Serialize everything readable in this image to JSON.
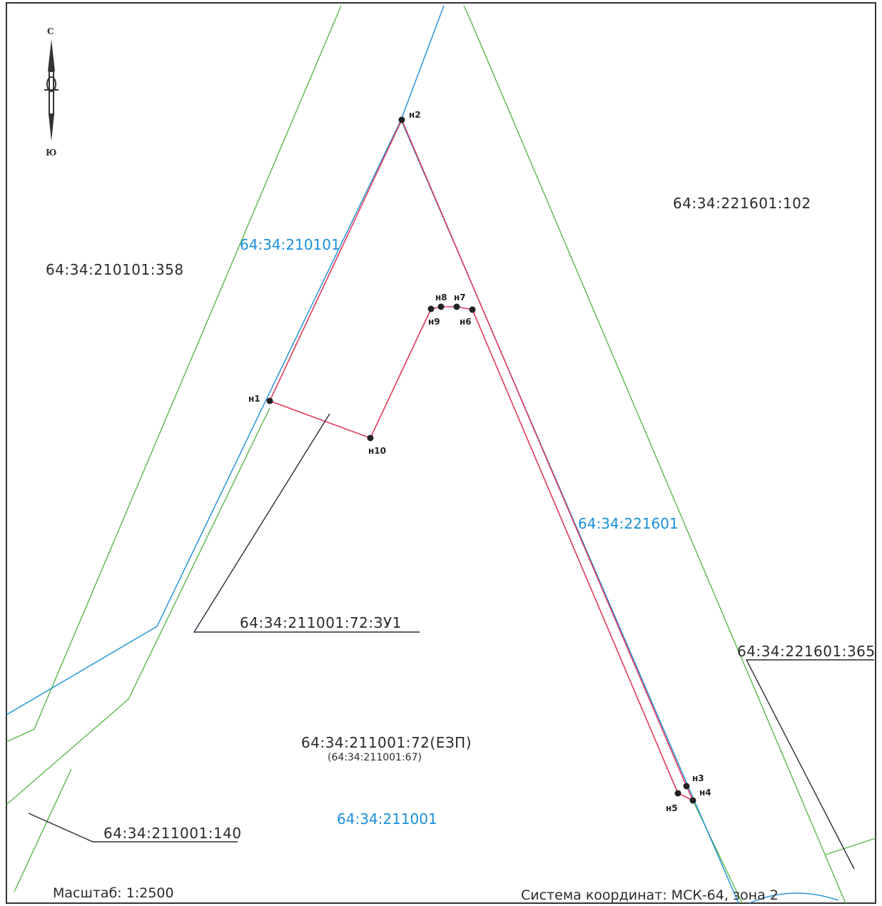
{
  "header_partial": "",
  "compass": {
    "north": "С",
    "south": "Ю"
  },
  "parcels": {
    "p358": "64:34:210101:358",
    "p102": "64:34:221601:102",
    "zu1": "64:34:211001:72:ЗУ1",
    "p365": "64:34:221601:365",
    "ezp": "64:34:211001:72(ЕЗП)",
    "ezp_sub": "(64:34:211001:67)",
    "p140": "64:34:211001:140"
  },
  "quarters": {
    "q210101": "64:34:210101",
    "q221601": "64:34:221601",
    "q211001": "64:34:211001"
  },
  "points": {
    "n1": "н1",
    "n2": "н2",
    "n3": "н3",
    "n4": "н4",
    "n5": "н5",
    "n6": "н6",
    "n7": "н7",
    "n8": "н8",
    "n9": "н9",
    "n10": "н10"
  },
  "footer": {
    "scale": "Масштаб: 1:2500",
    "crs": "Система координат: МСК-64, зона 2"
  },
  "colors": {
    "parcel_boundary": "#e23a5a",
    "quarter_boundary": "#1a8fd8",
    "existing_parcel": "#59b84a",
    "leader": "#2a2a3a",
    "frame": "#333333"
  }
}
